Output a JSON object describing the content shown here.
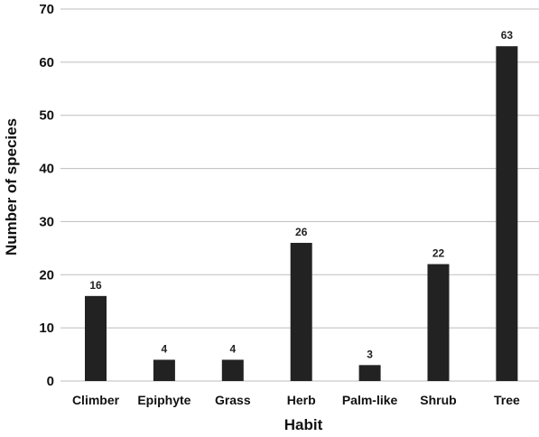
{
  "chart_data": {
    "type": "bar",
    "categories": [
      "Climber",
      "Epiphyte",
      "Grass",
      "Herb",
      "Palm-like",
      "Shrub",
      "Tree"
    ],
    "values": [
      16,
      4,
      4,
      26,
      3,
      22,
      63
    ],
    "data_labels": [
      "16",
      "4",
      "4",
      "26",
      "3",
      "22",
      "63"
    ],
    "title": "",
    "xlabel": "Habit",
    "ylabel": "Number of species",
    "ylim": [
      0,
      70
    ],
    "yticks": [
      0,
      10,
      20,
      30,
      40,
      50,
      60,
      70
    ],
    "grid": true,
    "legend": "none",
    "bar_color": "#222222",
    "grid_color": "#bdbdbd"
  }
}
